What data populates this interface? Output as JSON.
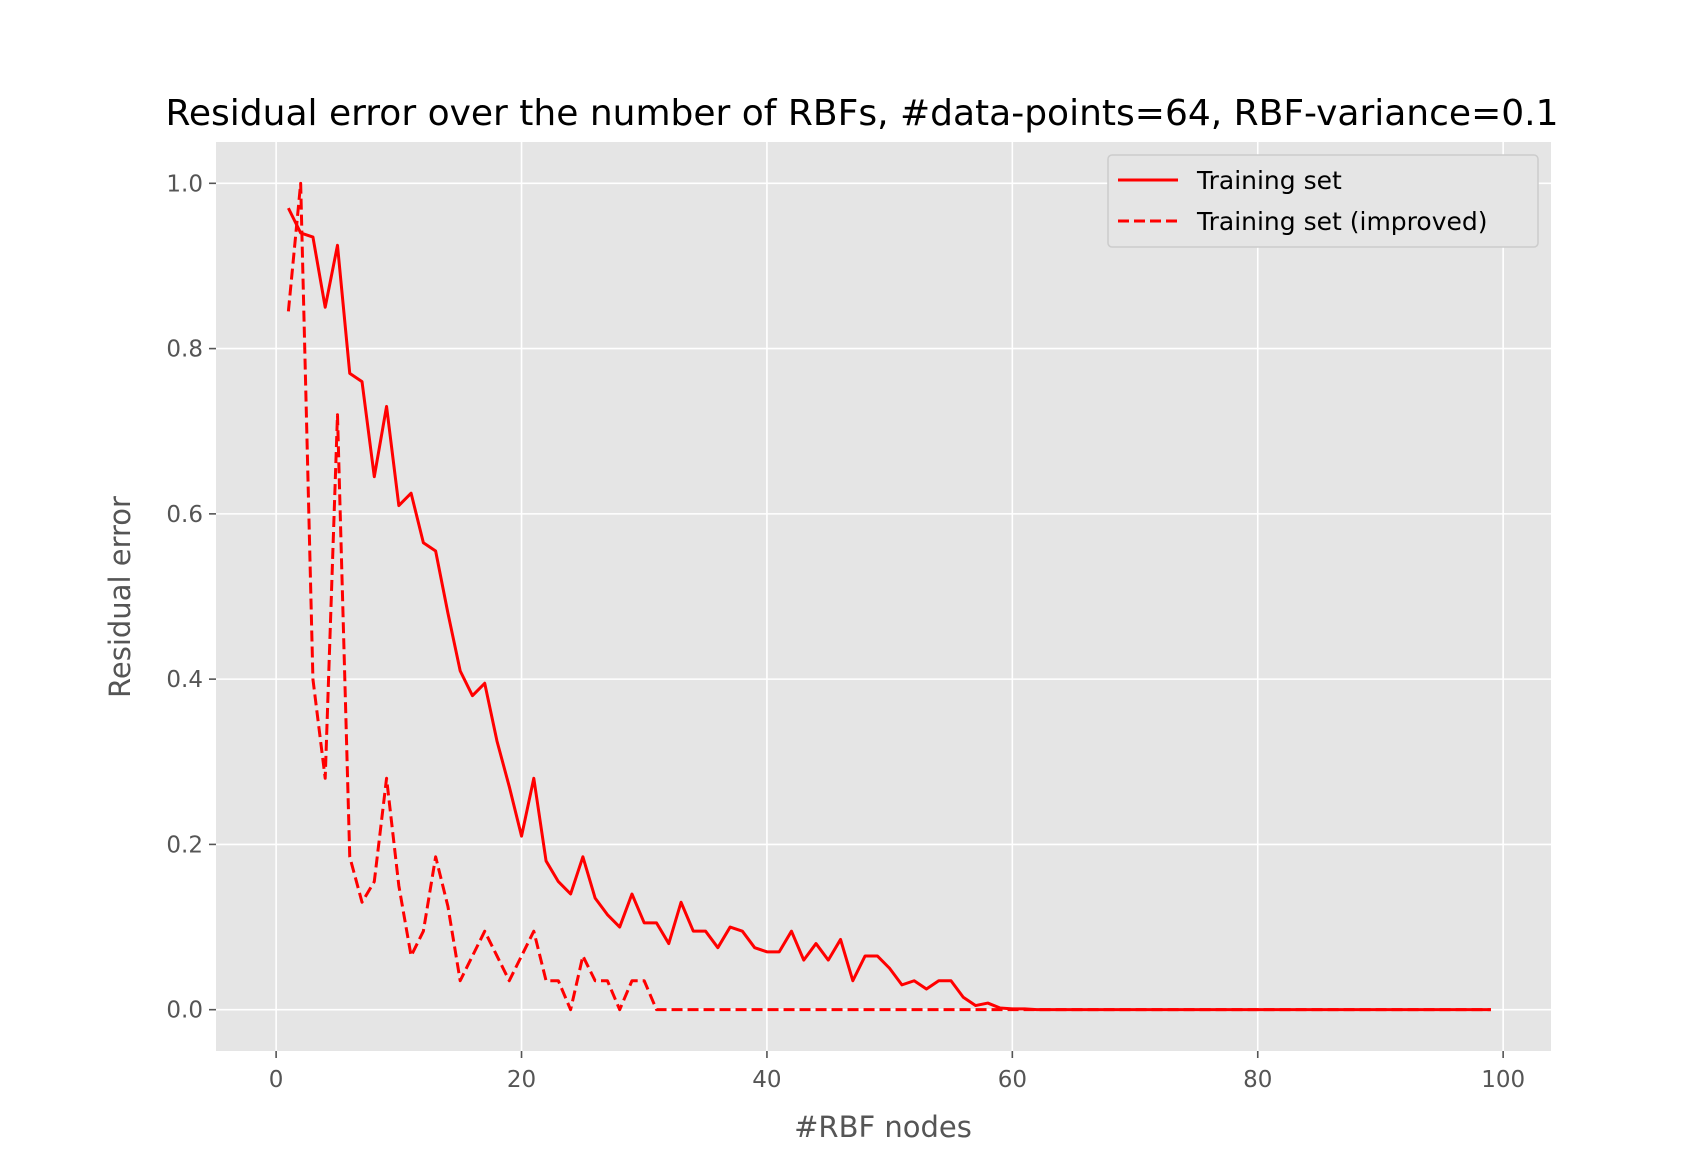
{
  "chart_data": {
    "type": "line",
    "title": "Residual error over the number of RBFs, #data-points=64, RBF-variance=0.1",
    "xlabel": "#RBF nodes",
    "ylabel": "Residual error",
    "xlim": [
      -4.9,
      103.9
    ],
    "ylim": [
      -0.05,
      1.05
    ],
    "xticks": [
      "0",
      "20",
      "40",
      "60",
      "80",
      "100"
    ],
    "yticks": [
      "0.0",
      "0.2",
      "0.4",
      "0.6",
      "0.8",
      "1.0"
    ],
    "grid": true,
    "legend_position": "top-right",
    "x_start": 1,
    "series": [
      {
        "name": "Training set",
        "color": "#ff0000",
        "dash": "solid",
        "values": [
          0.97,
          0.94,
          0.935,
          0.85,
          0.925,
          0.77,
          0.76,
          0.645,
          0.73,
          0.61,
          0.625,
          0.565,
          0.555,
          0.48,
          0.41,
          0.38,
          0.395,
          0.325,
          0.27,
          0.21,
          0.28,
          0.18,
          0.155,
          0.14,
          0.185,
          0.135,
          0.115,
          0.1,
          0.14,
          0.105,
          0.105,
          0.08,
          0.13,
          0.095,
          0.095,
          0.075,
          0.1,
          0.095,
          0.075,
          0.07,
          0.07,
          0.095,
          0.06,
          0.08,
          0.06,
          0.085,
          0.035,
          0.065,
          0.065,
          0.05,
          0.03,
          0.035,
          0.025,
          0.035,
          0.035,
          0.015,
          0.005,
          0.008,
          0.002,
          0.001,
          0.001,
          0.0,
          0.0,
          0.0,
          0.0,
          0.0,
          0.0,
          0.0,
          0.0,
          0.0,
          0.0,
          0.0,
          0.0,
          0.0,
          0.0,
          0.0,
          0.0,
          0.0,
          0.0,
          0.0,
          0.0,
          0.0,
          0.0,
          0.0,
          0.0,
          0.0,
          0.0,
          0.0,
          0.0,
          0.0,
          0.0,
          0.0,
          0.0,
          0.0,
          0.0,
          0.0,
          0.0,
          0.0,
          0.0
        ]
      },
      {
        "name": "Training set (improved)",
        "color": "#ff0000",
        "dash": "dashed",
        "values": [
          0.845,
          1.0,
          0.4,
          0.28,
          0.72,
          0.185,
          0.13,
          0.155,
          0.28,
          0.15,
          0.065,
          0.095,
          0.185,
          0.125,
          0.035,
          0.065,
          0.095,
          0.065,
          0.035,
          0.065,
          0.095,
          0.035,
          0.035,
          0.0,
          0.065,
          0.035,
          0.035,
          0.0,
          0.035,
          0.035,
          0.0,
          0.0,
          0.0,
          0.0,
          0.0,
          0.0,
          0.0,
          0.0,
          0.0,
          0.0,
          0.0,
          0.0,
          0.0,
          0.0,
          0.0,
          0.0,
          0.0,
          0.0,
          0.0,
          0.0,
          0.0,
          0.0,
          0.0,
          0.0,
          0.0,
          0.0,
          0.0,
          0.0,
          0.0,
          0.0,
          0.0,
          0.0,
          0.0,
          0.0,
          0.0,
          0.0,
          0.0,
          0.0,
          0.0,
          0.0,
          0.0,
          0.0,
          0.0,
          0.0,
          0.0,
          0.0,
          0.0,
          0.0,
          0.0,
          0.0,
          0.0,
          0.0,
          0.0,
          0.0,
          0.0,
          0.0,
          0.0,
          0.0,
          0.0,
          0.0,
          0.0,
          0.0,
          0.0,
          0.0,
          0.0,
          0.0,
          0.0,
          0.0,
          0.0
        ]
      }
    ]
  }
}
